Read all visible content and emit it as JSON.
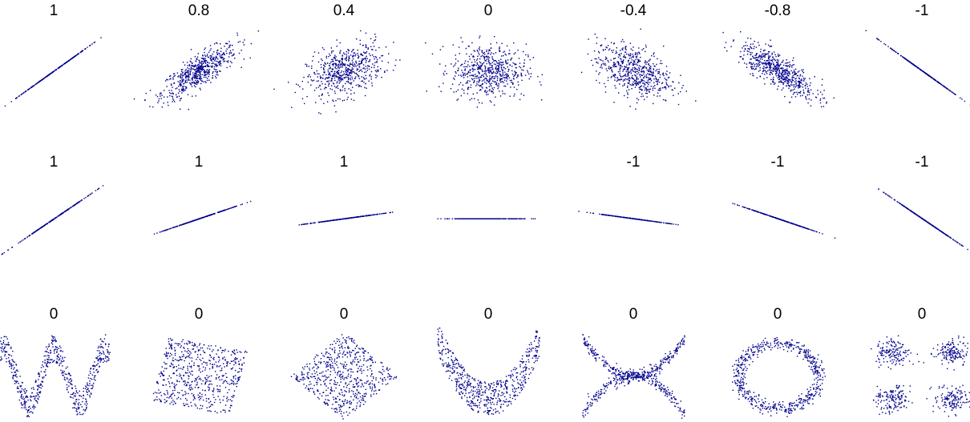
{
  "point_color": "#00008b",
  "chart_data": [
    {
      "type": "scatter",
      "title": "1",
      "pattern": "linear",
      "correlation": 1,
      "xlim": [
        -3,
        3
      ],
      "ylim": [
        -3,
        3
      ],
      "slope": 1
    },
    {
      "type": "scatter",
      "title": "0.8",
      "pattern": "gaussian",
      "correlation": 0.8,
      "xlim": [
        -3,
        3
      ],
      "ylim": [
        -3,
        3
      ]
    },
    {
      "type": "scatter",
      "title": "0.4",
      "pattern": "gaussian",
      "correlation": 0.4,
      "xlim": [
        -3,
        3
      ],
      "ylim": [
        -3,
        3
      ]
    },
    {
      "type": "scatter",
      "title": "0",
      "pattern": "gaussian",
      "correlation": 0,
      "xlim": [
        -3,
        3
      ],
      "ylim": [
        -3,
        3
      ]
    },
    {
      "type": "scatter",
      "title": "-0.4",
      "pattern": "gaussian",
      "correlation": -0.4,
      "xlim": [
        -3,
        3
      ],
      "ylim": [
        -3,
        3
      ]
    },
    {
      "type": "scatter",
      "title": "-0.8",
      "pattern": "gaussian",
      "correlation": -0.8,
      "xlim": [
        -3,
        3
      ],
      "ylim": [
        -3,
        3
      ]
    },
    {
      "type": "scatter",
      "title": "-1",
      "pattern": "linear",
      "correlation": -1,
      "xlim": [
        -3,
        3
      ],
      "ylim": [
        -3,
        3
      ],
      "slope": -1
    },
    {
      "type": "scatter",
      "title": "1",
      "pattern": "linear",
      "correlation": 1,
      "xlim": [
        -3,
        3
      ],
      "ylim": [
        -3,
        3
      ],
      "slope": 1
    },
    {
      "type": "scatter",
      "title": "1",
      "pattern": "linear",
      "correlation": 1,
      "xlim": [
        -3,
        3
      ],
      "ylim": [
        -3,
        3
      ],
      "slope": 0.5
    },
    {
      "type": "scatter",
      "title": "1",
      "pattern": "linear",
      "correlation": 1,
      "xlim": [
        -3,
        3
      ],
      "ylim": [
        -3,
        3
      ],
      "slope": 0.2
    },
    {
      "type": "scatter",
      "title": "",
      "pattern": "linear",
      "correlation": null,
      "xlim": [
        -3,
        3
      ],
      "ylim": [
        -3,
        3
      ],
      "slope": 0
    },
    {
      "type": "scatter",
      "title": "-1",
      "pattern": "linear",
      "correlation": -1,
      "xlim": [
        -3,
        3
      ],
      "ylim": [
        -3,
        3
      ],
      "slope": -0.2
    },
    {
      "type": "scatter",
      "title": "-1",
      "pattern": "linear",
      "correlation": -1,
      "xlim": [
        -3,
        3
      ],
      "ylim": [
        -3,
        3
      ],
      "slope": -0.5
    },
    {
      "type": "scatter",
      "title": "-1",
      "pattern": "linear",
      "correlation": -1,
      "xlim": [
        -3,
        3
      ],
      "ylim": [
        -3,
        3
      ],
      "slope": -1
    },
    {
      "type": "scatter",
      "title": "0",
      "pattern": "sine-wave",
      "correlation": 0,
      "xlim": [
        -1,
        1
      ],
      "ylim": [
        -1.3,
        1.3
      ]
    },
    {
      "type": "scatter",
      "title": "0",
      "pattern": "rotated-square",
      "correlation": 0,
      "xlim": [
        -1.4,
        1.4
      ],
      "ylim": [
        -1.4,
        1.4
      ]
    },
    {
      "type": "scatter",
      "title": "0",
      "pattern": "diamond",
      "correlation": 0,
      "xlim": [
        -1.1,
        1.1
      ],
      "ylim": [
        -1.1,
        1.1
      ]
    },
    {
      "type": "scatter",
      "title": "0",
      "pattern": "parabola",
      "correlation": 0,
      "xlim": [
        -1.1,
        1.1
      ],
      "ylim": [
        -0.2,
        1.3
      ]
    },
    {
      "type": "scatter",
      "title": "0",
      "pattern": "x-shape",
      "correlation": 0,
      "xlim": [
        -1.1,
        1.1
      ],
      "ylim": [
        -1.2,
        1.2
      ]
    },
    {
      "type": "scatter",
      "title": "0",
      "pattern": "ring",
      "correlation": 0,
      "xlim": [
        -1.4,
        1.4
      ],
      "ylim": [
        -1.4,
        1.4
      ]
    },
    {
      "type": "scatter",
      "title": "0",
      "pattern": "four-clusters",
      "correlation": 0,
      "xlim": [
        -5,
        5
      ],
      "ylim": [
        -5,
        5
      ]
    }
  ]
}
